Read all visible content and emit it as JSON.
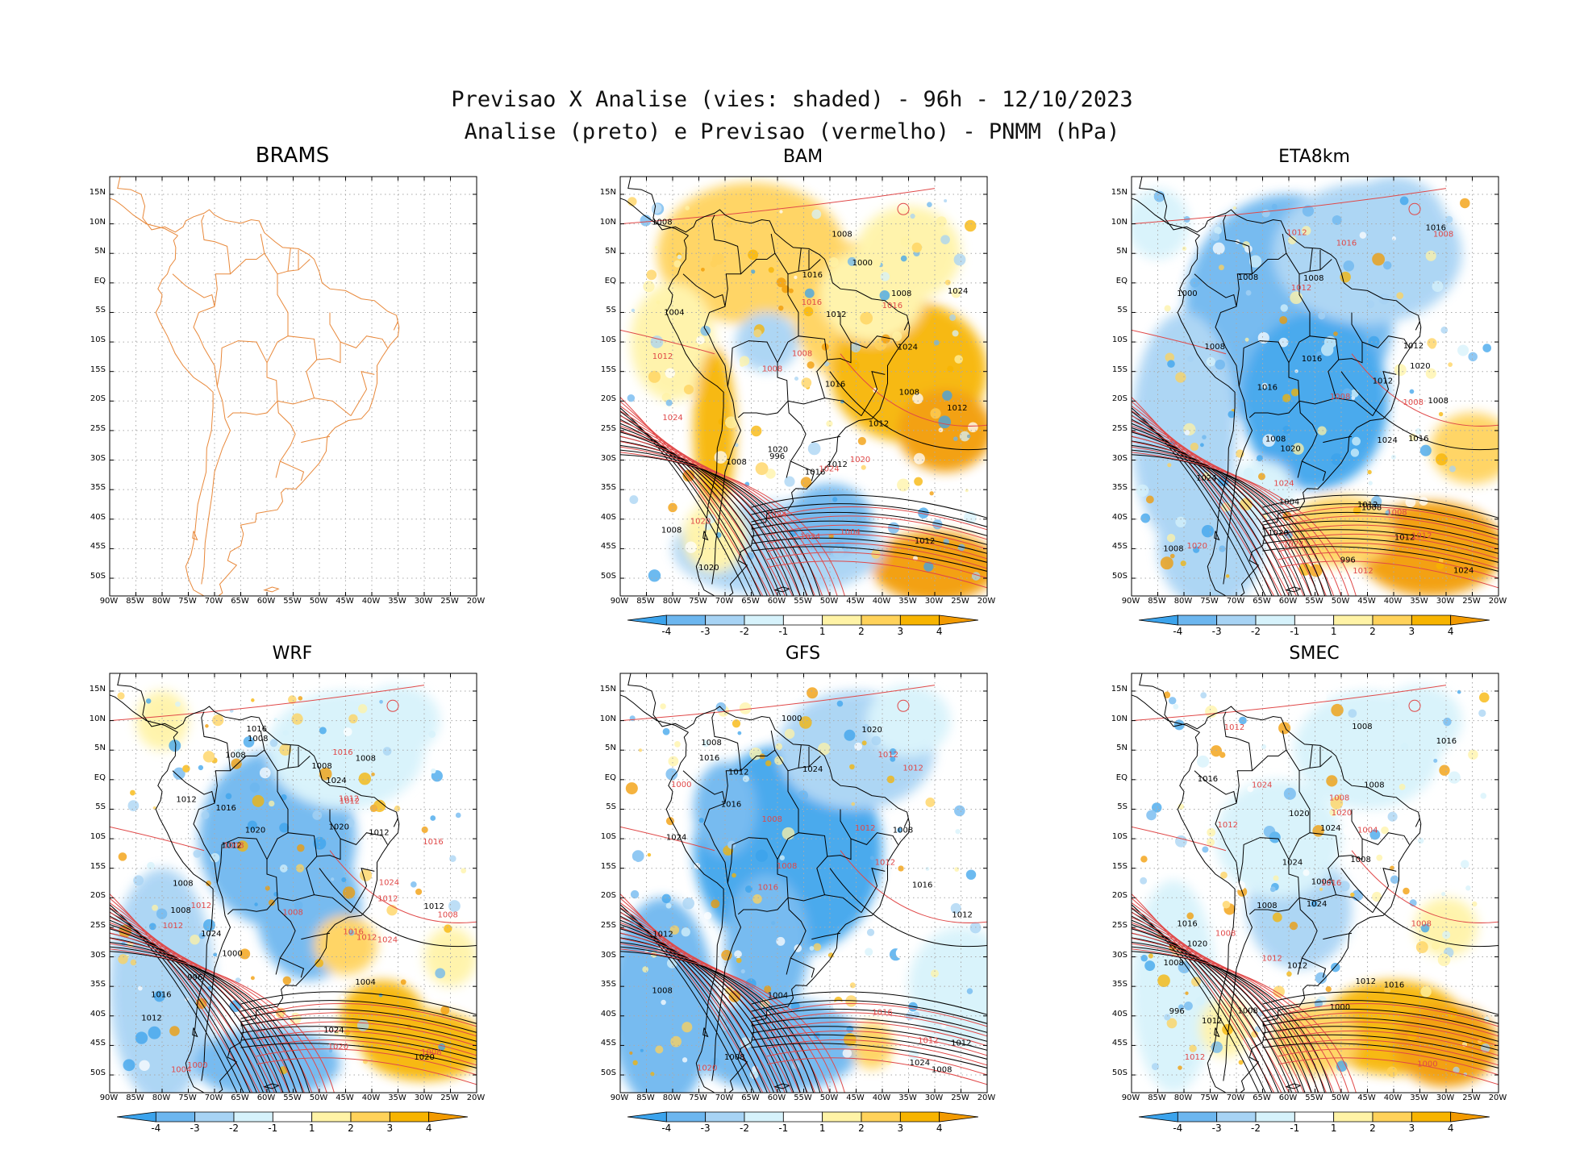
{
  "header": {
    "title_line1": "Previsao X Analise (vies: shaded) - 96h - 12/10/2023",
    "title_line2": "Analise (preto) e Previsao (vermelho) - PNMM (hPa)"
  },
  "axes": {
    "lat_labels": [
      "15N",
      "10N",
      "5N",
      "EQ",
      "5S",
      "10S",
      "15S",
      "20S",
      "25S",
      "30S",
      "35S",
      "40S",
      "45S",
      "50S"
    ],
    "lon_labels": [
      "90W",
      "85W",
      "80W",
      "75W",
      "70W",
      "65W",
      "60W",
      "55W",
      "50W",
      "45W",
      "40W",
      "35W",
      "30W",
      "25W",
      "20W"
    ]
  },
  "colorbar": {
    "labels": [
      "-4",
      "-3",
      "-2",
      "-1",
      "1",
      "2",
      "3",
      "4"
    ],
    "colors": [
      "#3ba3ec",
      "#6cb6ef",
      "#a7d3f4",
      "#d6f2fb",
      "#ffffff",
      "#fff3a6",
      "#ffd25a",
      "#f7b400",
      "#f29a00"
    ]
  },
  "colors": {
    "coast_brams": "#e8883a",
    "analysis": "#000000",
    "forecast": "#e04848",
    "grid": "#aaaaaa"
  },
  "panels": [
    {
      "name": "BRAMS",
      "bias": "none",
      "colorbar": false,
      "analysis_labels": [],
      "forecast_labels": []
    },
    {
      "name": "BAM",
      "bias": "positive",
      "colorbar": true,
      "analysis_labels": [
        "1008",
        "1012",
        "1008",
        "1008",
        "1008",
        "1012",
        "1012",
        "1008",
        "1016",
        "1016",
        "1012",
        "1020",
        "1020",
        "1016",
        "1024",
        "1008",
        "1024",
        "1012",
        "1004",
        "1000",
        "996"
      ],
      "forecast_labels": [
        "1008",
        "1016",
        "1012",
        "1008",
        "1020",
        "1024",
        "1020",
        "1024",
        "1024",
        "1024",
        "1004",
        "1016"
      ]
    },
    {
      "name": "ETA8km",
      "bias": "negative",
      "colorbar": true,
      "analysis_labels": [
        "1008",
        "1008",
        "1012",
        "1008",
        "1008",
        "1008",
        "1008",
        "1012",
        "1016",
        "1016",
        "1016",
        "1012",
        "1020",
        "1020",
        "1024",
        "1020",
        "1024",
        "1012",
        "1008",
        "1004",
        "1000",
        "1016",
        "1024",
        "996"
      ],
      "forecast_labels": [
        "1012",
        "1008",
        "1012",
        "1008",
        "1016",
        "1008",
        "1012",
        "1012",
        "1020",
        "1024",
        "1024",
        "1008"
      ]
    },
    {
      "name": "WRF",
      "bias": "mixed",
      "colorbar": true,
      "analysis_labels": [
        "1012",
        "1008",
        "1008",
        "1008",
        "1012",
        "1008",
        "1008",
        "1016",
        "1012",
        "1020",
        "1012",
        "1020",
        "1020",
        "1024",
        "1024",
        "1016",
        "1016",
        "1024",
        "1012",
        "1008",
        "1004",
        "1000",
        "996"
      ],
      "forecast_labels": [
        "1012",
        "1008",
        "1012",
        "1012",
        "1016",
        "1012",
        "1008",
        "1008",
        "1016",
        "1016",
        "1020",
        "1024",
        "1012",
        "1012",
        "1008",
        "1004",
        "1000",
        "1024"
      ]
    },
    {
      "name": "GFS",
      "bias": "negative-strong",
      "colorbar": true,
      "analysis_labels": [
        "1008",
        "1012",
        "1008",
        "1008",
        "1012",
        "1008",
        "1016",
        "1012",
        "1008",
        "1016",
        "1020",
        "1016",
        "1024",
        "1024",
        "1024",
        "1012",
        "1004",
        "1000"
      ],
      "forecast_labels": [
        "1012",
        "1012",
        "1008",
        "1012",
        "1016",
        "1012",
        "1016",
        "1008",
        "1020",
        "1000",
        "1012"
      ]
    },
    {
      "name": "SMEC",
      "bias": "mixed-positive",
      "colorbar": true,
      "analysis_labels": [
        "1008",
        "1012",
        "1008",
        "1008",
        "1016",
        "1012",
        "1008",
        "1008",
        "1016",
        "1016",
        "1012",
        "1020",
        "1020",
        "1016",
        "1024",
        "1024",
        "1024",
        "1008",
        "1004",
        "1000",
        "996"
      ],
      "forecast_labels": [
        "1012",
        "1008",
        "1012",
        "1012",
        "1008",
        "1016",
        "1012",
        "1008",
        "1024",
        "1020",
        "1004",
        "1000"
      ]
    }
  ]
}
